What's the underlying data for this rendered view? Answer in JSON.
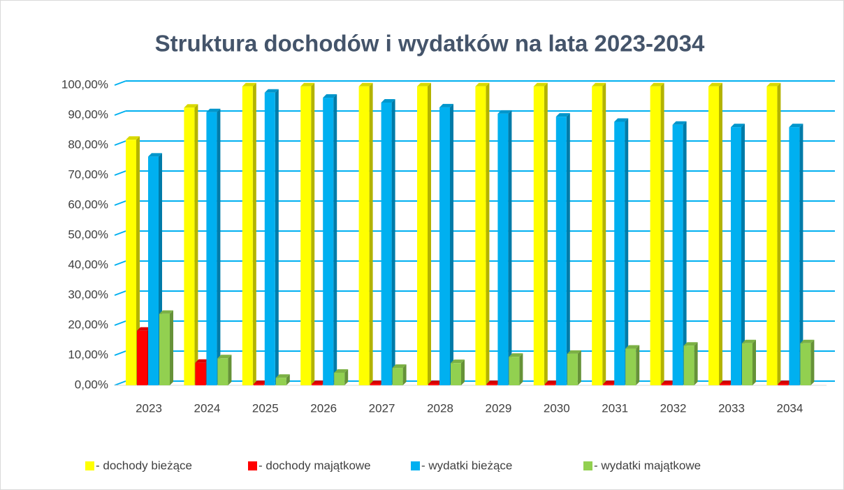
{
  "chart_data": {
    "type": "bar",
    "title": "Struktura dochodów  i wydatków  na lata 2023-2034",
    "categories": [
      "2023",
      "2024",
      "2025",
      "2026",
      "2027",
      "2028",
      "2029",
      "2030",
      "2031",
      "2032",
      "2033",
      "2034"
    ],
    "series": [
      {
        "name": "- dochody bieżące",
        "color": "#ffff00",
        "values": [
          81.8,
          92.5,
          99.6,
          99.6,
          99.6,
          99.6,
          99.6,
          99.6,
          99.6,
          99.6,
          99.6,
          99.6
        ]
      },
      {
        "name": "- dochody majątkowe",
        "color": "#ff0000",
        "values": [
          18.2,
          7.5,
          0.4,
          0.4,
          0.4,
          0.4,
          0.4,
          0.4,
          0.4,
          0.4,
          0.4,
          0.4
        ]
      },
      {
        "name": "- wydatki bieżące",
        "color": "#00b0f0",
        "values": [
          76.2,
          91.0,
          97.5,
          95.8,
          94.2,
          92.6,
          90.5,
          89.5,
          87.8,
          86.8,
          86.0,
          86.0
        ]
      },
      {
        "name": "- wydatki majątkowe",
        "color": "#92d050",
        "values": [
          23.8,
          9.0,
          2.5,
          4.2,
          5.8,
          7.4,
          9.5,
          10.5,
          12.2,
          13.2,
          14.0,
          14.0
        ]
      }
    ],
    "ylim": [
      0,
      100
    ],
    "yticks": [
      {
        "value": 0,
        "label": "0,00%"
      },
      {
        "value": 10,
        "label": "10,00%"
      },
      {
        "value": 20,
        "label": "20,00%"
      },
      {
        "value": 30,
        "label": "30,00%"
      },
      {
        "value": 40,
        "label": "40,00%"
      },
      {
        "value": 50,
        "label": "50,00%"
      },
      {
        "value": 60,
        "label": "60,00%"
      },
      {
        "value": 70,
        "label": "70,00%"
      },
      {
        "value": 80,
        "label": "80,00%"
      },
      {
        "value": 90,
        "label": "90,00%"
      },
      {
        "value": 100,
        "label": "100,00%"
      }
    ],
    "grid": true,
    "legend": "bottom"
  }
}
